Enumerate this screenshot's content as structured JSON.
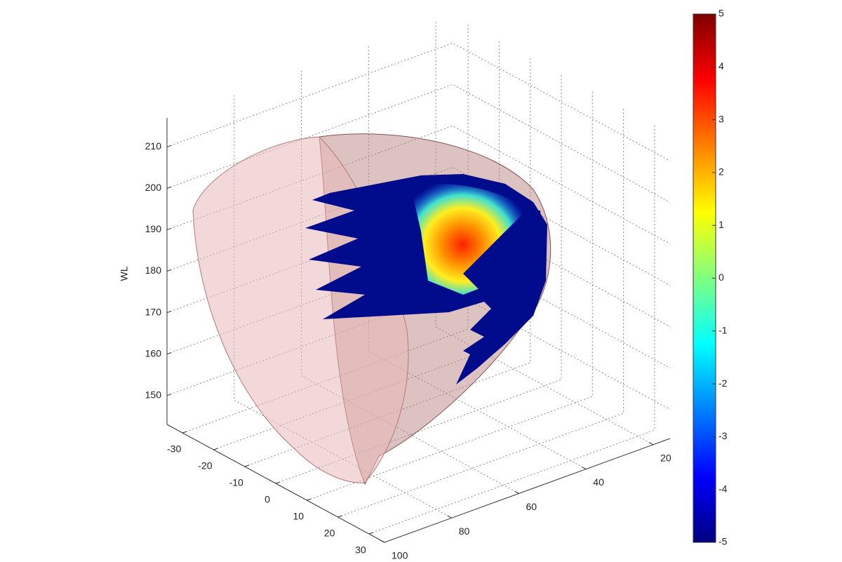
{
  "chart_data": {
    "type": "surface3d",
    "zlabel": "WL",
    "xlim": [
      -35,
      35
    ],
    "xticks": [
      -30,
      -20,
      -10,
      0,
      10,
      20,
      30
    ],
    "ylim": [
      15,
      100
    ],
    "yticks": [
      20,
      40,
      60,
      80,
      100
    ],
    "zlim": [
      143,
      217
    ],
    "zticks": [
      150,
      160,
      170,
      180,
      190,
      200,
      210
    ],
    "clim": [
      -5,
      5
    ],
    "cticks": [
      -5,
      -4,
      -3,
      -2,
      -1,
      0,
      1,
      2,
      3,
      4,
      5
    ],
    "colormap": [
      "#00007f",
      "#0000ff",
      "#0080ff",
      "#00ffff",
      "#80ff80",
      "#ffff00",
      "#ff8000",
      "#ff0000",
      "#7f0000"
    ],
    "grid": true
  }
}
